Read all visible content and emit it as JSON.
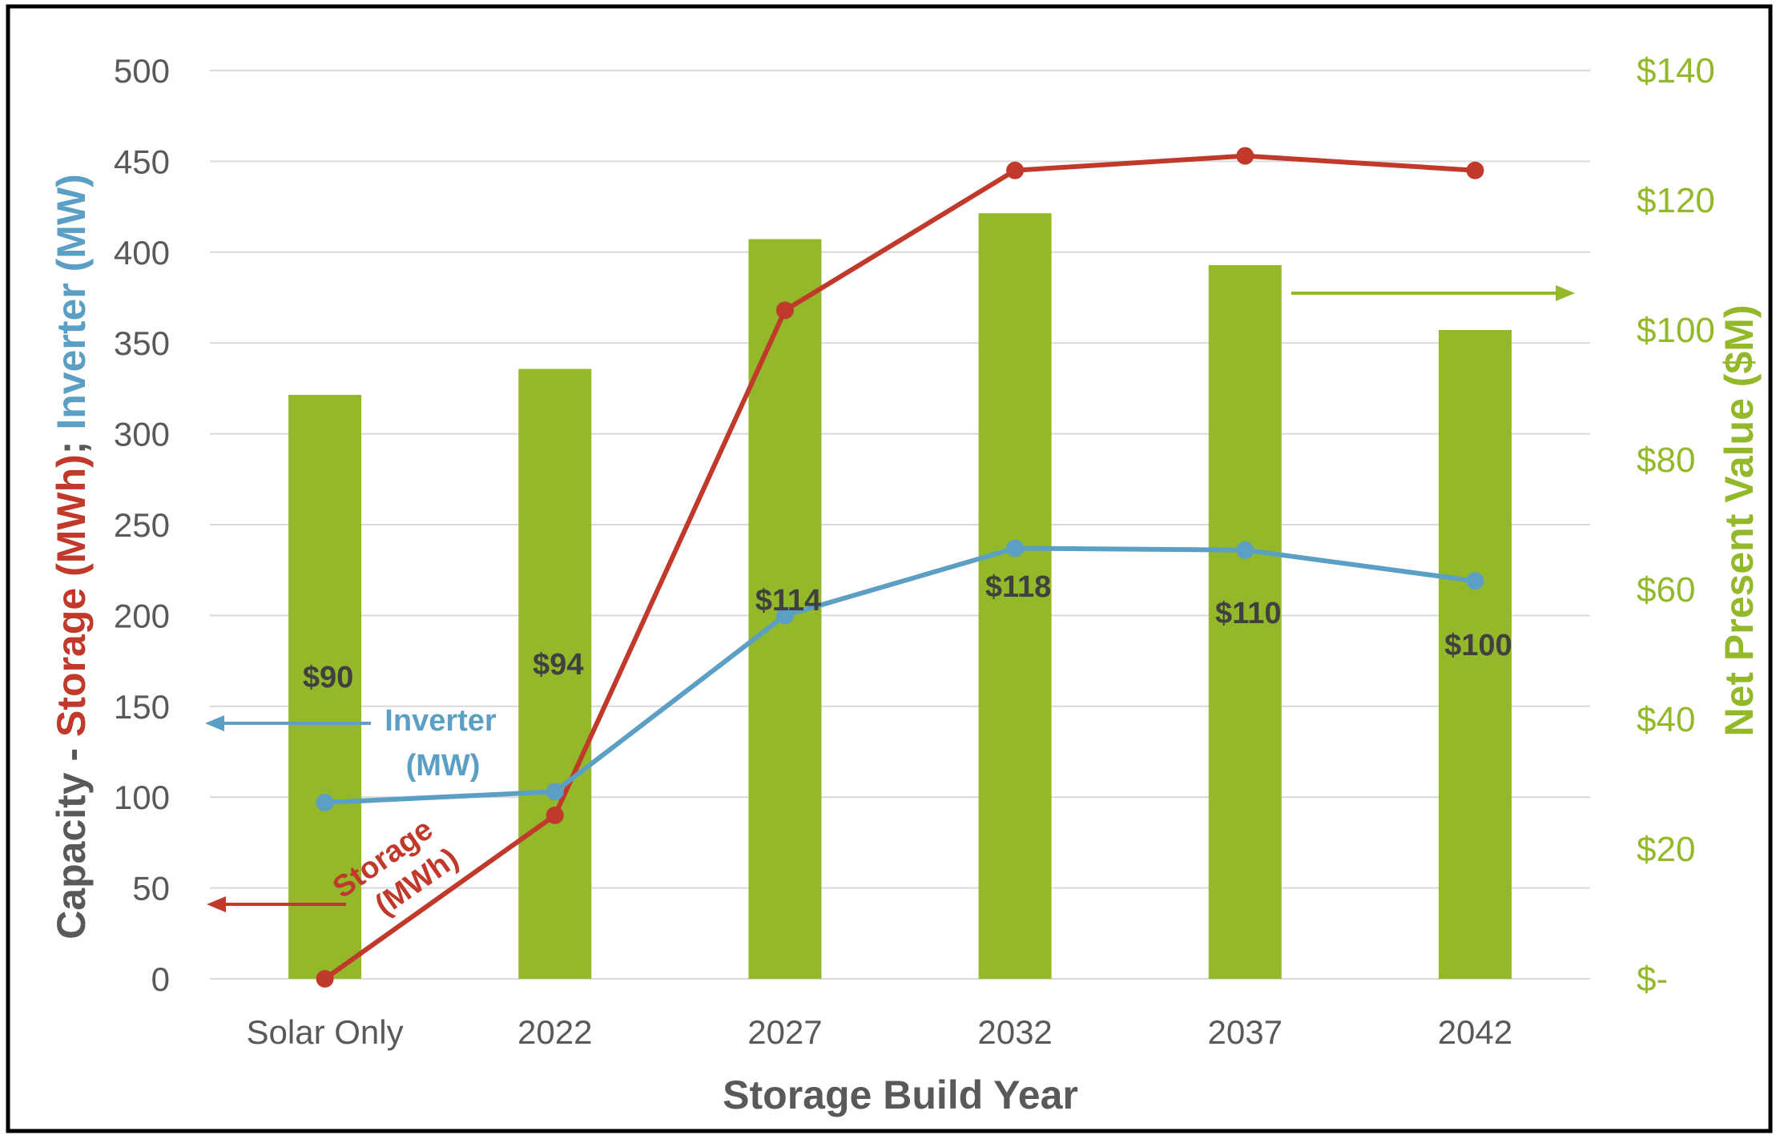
{
  "chart_data": {
    "type": "bar",
    "categories": [
      "Solar Only",
      "2022",
      "2027",
      "2032",
      "2037",
      "2042"
    ],
    "xlabel": "Storage Build Year",
    "ylabel_parts": [
      "Capacity - ",
      "Storage (MWh)",
      "; ",
      "Inverter (MW)"
    ],
    "ylim": [
      0,
      500
    ],
    "y_ticks": [
      "0",
      "50",
      "100",
      "150",
      "200",
      "250",
      "300",
      "350",
      "400",
      "450",
      "500"
    ],
    "y2label": "Net Present Value ($M)",
    "y2lim": [
      0,
      140
    ],
    "y2_ticks": [
      "$-",
      "$20",
      "$40",
      "$60",
      "$80",
      "$100",
      "$120",
      "$140"
    ],
    "grid": true,
    "series": [
      {
        "name": "Net Present Value ($M)",
        "kind": "bar",
        "axis": "right",
        "values": [
          90,
          94,
          114,
          118,
          110,
          100
        ],
        "labels": [
          "$90",
          "$94",
          "$114",
          "$118",
          "$110",
          "$100"
        ],
        "color": "#93b82a"
      },
      {
        "name": "Storage (MWh)",
        "kind": "line",
        "axis": "left",
        "values": [
          0,
          90,
          368,
          445,
          453,
          445
        ],
        "color": "#c0392b"
      },
      {
        "name": "Inverter (MW)",
        "kind": "line",
        "axis": "left",
        "values": [
          97,
          103,
          200,
          237,
          236,
          219
        ],
        "color": "#5b9fc4"
      }
    ],
    "annotations": {
      "inverter": [
        "Inverter",
        "(MW)"
      ],
      "storage": [
        "Storage",
        "(MWh)"
      ]
    },
    "colors": {
      "axis_text": "#595959",
      "dark_text": "#404040",
      "grid": "#d9d9d9"
    }
  }
}
